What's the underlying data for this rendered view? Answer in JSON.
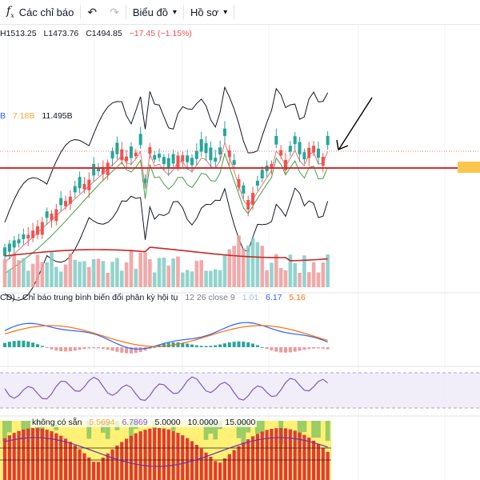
{
  "toolbar": {
    "indicators_icon": "fx-icon",
    "indicators_label": "Các chỉ báo",
    "undo_icon": "undo-icon",
    "redo_icon": "redo-icon",
    "chart_label": "Biểu đồ",
    "profile_label": "Hồ sơ"
  },
  "ohlc": {
    "h": "H1513.25",
    "l": "L1473.76",
    "c": "C1494.85",
    "change": "−17.45 (−1.15%)"
  },
  "volume_legend": {
    "v1": "B",
    "v2": "7.18B",
    "v3": "11.495B"
  },
  "macd_legend": {
    "title": "CD) - Chỉ báo trung bình biến đổi phân kỳ hội tụ",
    "params": "12 26 close 9",
    "v1": "1.01",
    "v2": "6.17",
    "v3": "5.16"
  },
  "bottom_legend": {
    "label": "không có sẵn",
    "v1": "5.5694",
    "v2": "6.7869",
    "v3": "5.0000",
    "v4": "10.0000",
    "v5": "15.0000"
  },
  "colors": {
    "up": "#26a69a",
    "down": "#ef5350",
    "support_line": "#d32f2f",
    "price_tag": "#f9c74f",
    "bb": "#131722",
    "ma_fast": "#e57373",
    "ma_slow": "#43a047",
    "macd_line": "#2962ff",
    "signal_line": "#ff6d00",
    "rsi_line": "#7e57c2",
    "rsi_band": "#ede7f6",
    "heat_yellow": "#fff176",
    "heat_green": "#9ccc65",
    "heat_red": "#e53935"
  }
}
